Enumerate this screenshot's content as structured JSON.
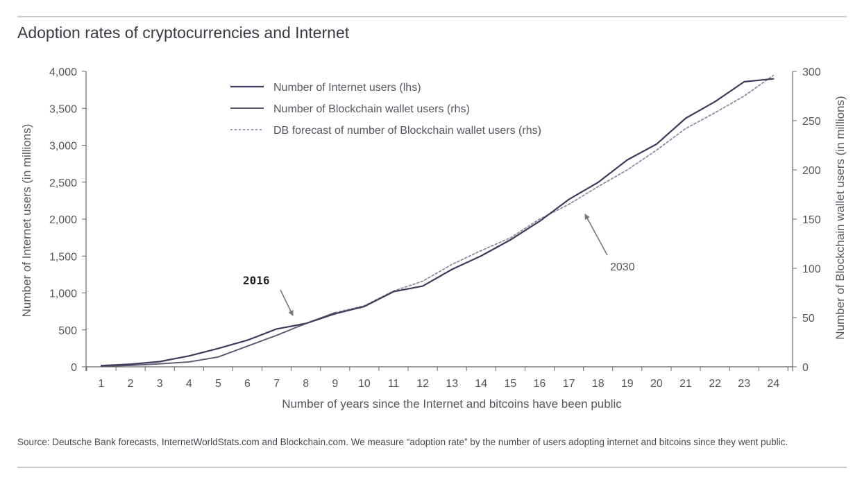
{
  "title": "Adoption rates of cryptocurrencies and Internet",
  "source": "Source: Deutsche Bank forecasts, InternetWorldStats.com and Blockchain.com. We measure “adoption rate” by the number of users adopting internet and bitcoins since they went public.",
  "colors": {
    "internet": "#3c3b5c",
    "blockchain": "#5a5870",
    "forecast": "#8a89a0",
    "axis": "#666666",
    "rule": "#c9c9c9"
  },
  "chart_data": {
    "type": "line",
    "xlabel": "Number of years since the Internet and bitcoins have been public",
    "ylabel_left": "Number of Internet users (in millions)",
    "ylabel_right": "Number of Blockchain wallet users (in millions)",
    "x": [
      1,
      2,
      3,
      4,
      5,
      6,
      7,
      8,
      9,
      10,
      11,
      12,
      13,
      14,
      15,
      16,
      17,
      18,
      19,
      20,
      21,
      22,
      23,
      24
    ],
    "ylim_left": [
      0,
      4000
    ],
    "ylim_right": [
      0,
      300
    ],
    "yticks_left": [
      "0",
      "500",
      "1,000",
      "1,500",
      "2,000",
      "2,500",
      "3,000",
      "3,500",
      "4,000"
    ],
    "yticks_right": [
      "0",
      "50",
      "100",
      "150",
      "200",
      "250",
      "300"
    ],
    "legend_position": "top-center",
    "grid": false,
    "series": [
      {
        "name": "Number of Internet users (lhs)",
        "axis": "left",
        "style": "solid",
        "x": [
          1,
          2,
          3,
          4,
          5,
          6,
          7,
          8,
          9,
          10,
          11,
          12,
          13,
          14,
          15,
          16,
          17,
          18,
          19,
          20,
          21,
          22,
          23,
          24
        ],
        "values": [
          16,
          36,
          70,
          147,
          248,
          361,
          513,
          587,
          719,
          817,
          1018,
          1093,
          1319,
          1502,
          1719,
          1971,
          2267,
          2497,
          2802,
          3015,
          3366,
          3590,
          3860,
          3900
        ]
      },
      {
        "name": "Number of Blockchain wallet users (rhs)",
        "axis": "right",
        "style": "solid",
        "x": [
          1,
          2,
          3,
          4,
          5,
          6,
          7,
          8,
          9
        ],
        "values": [
          0.5,
          1.5,
          3,
          5,
          10,
          21,
          32,
          44,
          55
        ]
      },
      {
        "name": "DB forecast of number of Blockchain wallet users (rhs)",
        "axis": "right",
        "style": "dashed",
        "x": [
          9,
          10,
          11,
          12,
          13,
          14,
          15,
          16,
          17,
          18,
          19,
          20,
          21,
          22,
          23,
          24
        ],
        "values": [
          55,
          62,
          77,
          87,
          104,
          118,
          131,
          150,
          165,
          183,
          200,
          220,
          242,
          258,
          275,
          296
        ]
      }
    ],
    "annotations": [
      {
        "text": "2016",
        "x": 8
      },
      {
        "text": "2030",
        "x": 17
      }
    ]
  }
}
